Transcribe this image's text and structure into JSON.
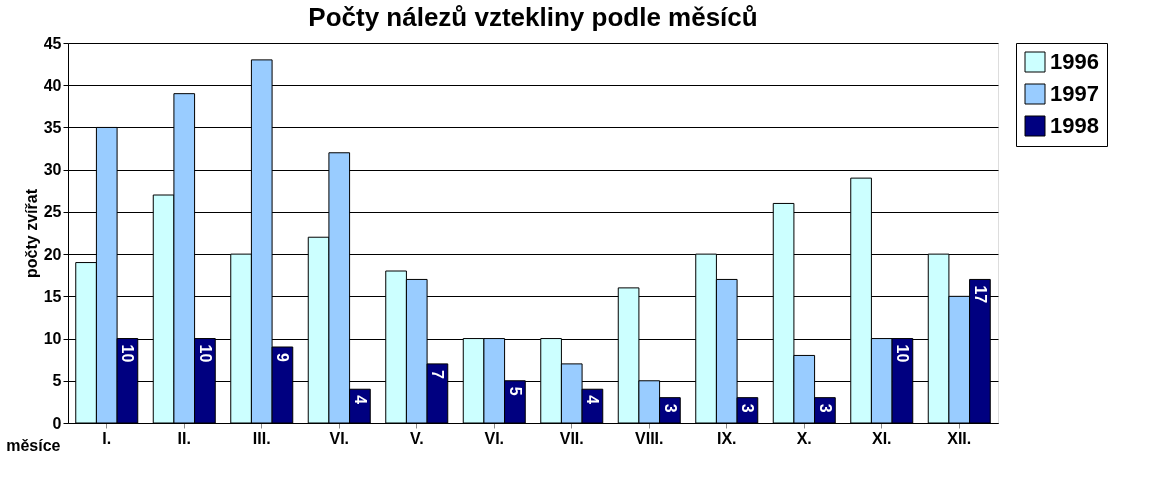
{
  "chart_data": {
    "type": "bar",
    "title": "Počty nálezů vztekliny podle měsíců",
    "xlabel": "měsíce",
    "ylabel": "počty zvířat",
    "categories": [
      "I.",
      "II.",
      "III.",
      "VI.",
      "V.",
      "VI.",
      "VII.",
      "VIII.",
      "IX.",
      "X.",
      "XI.",
      "XII."
    ],
    "series": [
      {
        "name": "1996",
        "color": "#ccffff",
        "values": [
          19,
          27,
          20,
          22,
          18,
          10,
          10,
          16,
          20,
          26,
          29,
          20
        ]
      },
      {
        "name": "1997",
        "color": "#99ccff",
        "values": [
          35,
          39,
          43,
          32,
          17,
          10,
          7,
          5,
          17,
          8,
          10,
          15
        ]
      },
      {
        "name": "1998",
        "color": "#000080",
        "values": [
          10,
          10,
          9,
          4,
          7,
          5,
          4,
          3,
          3,
          3,
          10,
          17
        ],
        "value_labels": [
          "10",
          "10",
          "9",
          "4",
          "7",
          "5",
          "4",
          "3",
          "3",
          "3",
          "10",
          "17"
        ]
      }
    ],
    "ylim": [
      0,
      45
    ],
    "yticks": [
      0,
      5,
      10,
      15,
      20,
      25,
      30,
      35,
      40,
      45
    ],
    "grid": "y",
    "legend": "right"
  }
}
